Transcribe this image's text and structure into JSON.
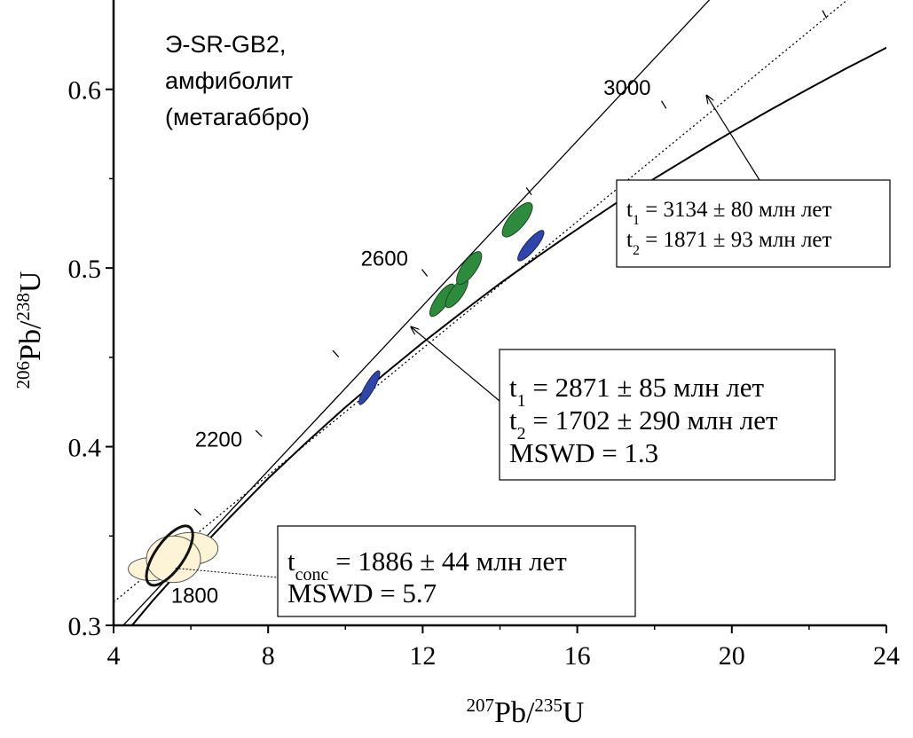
{
  "chart_data": {
    "type": "scatter",
    "title": "",
    "sample_label": [
      "Э-SR-GB2,",
      "амфиболит",
      "(метагаббро)"
    ],
    "xlabel": {
      "sup1": "207",
      "base1": "Pb/",
      "sup2": "235",
      "base2": "U"
    },
    "ylabel": {
      "sup1": "206",
      "base1": "Pb/",
      "sup2": "238",
      "base2": "U"
    },
    "xlim": [
      4,
      24
    ],
    "ylim": [
      0.3,
      0.65
    ],
    "x_ticks": [
      {
        "v": 4,
        "label": "4"
      },
      {
        "v": 8,
        "label": "8"
      },
      {
        "v": 12,
        "label": "12"
      },
      {
        "v": 16,
        "label": "16"
      },
      {
        "v": 20,
        "label": "20"
      },
      {
        "v": 24,
        "label": "24"
      }
    ],
    "y_ticks": [
      {
        "v": 0.3,
        "label": "0.3"
      },
      {
        "v": 0.4,
        "label": "0.4"
      },
      {
        "v": 0.5,
        "label": "0.5"
      },
      {
        "v": 0.6,
        "label": "0.6"
      }
    ],
    "x_minor_ticks": [
      6,
      10,
      14,
      18,
      22
    ],
    "y_minor_ticks": [
      0.35,
      0.45,
      0.55
    ],
    "concordia": {
      "points": [
        [
          4.0,
          0.2876
        ],
        [
          4.5,
          0.3006
        ],
        [
          5.0,
          0.3135
        ],
        [
          5.5,
          0.3255
        ],
        [
          6.0,
          0.3375
        ],
        [
          6.5,
          0.3489
        ],
        [
          7.0,
          0.3602
        ],
        [
          7.5,
          0.3712
        ],
        [
          8.0,
          0.3822
        ],
        [
          8.5,
          0.3924
        ],
        [
          9.0,
          0.4026
        ],
        [
          9.5,
          0.4124
        ],
        [
          10.0,
          0.4221
        ],
        [
          10.5,
          0.4313
        ],
        [
          11.0,
          0.4405
        ],
        [
          11.5,
          0.4494
        ],
        [
          12.0,
          0.4582
        ],
        [
          12.5,
          0.4666
        ],
        [
          13.0,
          0.475
        ],
        [
          13.5,
          0.4832
        ],
        [
          14.0,
          0.4914
        ],
        [
          14.5,
          0.4991
        ],
        [
          15.0,
          0.5068
        ],
        [
          15.5,
          0.5143
        ],
        [
          16.0,
          0.5217
        ],
        [
          16.5,
          0.529
        ],
        [
          17.0,
          0.5362
        ],
        [
          17.5,
          0.5431
        ],
        [
          18.0,
          0.5501
        ],
        [
          18.5,
          0.5567
        ],
        [
          19.0,
          0.5633
        ],
        [
          19.5,
          0.5698
        ],
        [
          20.0,
          0.5762
        ],
        [
          20.5,
          0.5824
        ],
        [
          21.0,
          0.5886
        ],
        [
          21.5,
          0.5945
        ],
        [
          22.0,
          0.6005
        ],
        [
          22.5,
          0.6063
        ],
        [
          23.0,
          0.6121
        ],
        [
          23.5,
          0.6177
        ],
        [
          24.0,
          0.6233
        ]
      ],
      "age_ticks": [
        {
          "x": 5.67,
          "y": 0.3324,
          "label": "1800"
        },
        {
          "x": 6.18,
          "y": 0.3634,
          "label": ""
        },
        {
          "x": 7.76,
          "y": 0.4074,
          "label": "2200"
        },
        {
          "x": 9.75,
          "y": 0.452,
          "label": ""
        },
        {
          "x": 12.05,
          "y": 0.4973,
          "label": "2600"
        },
        {
          "x": 14.75,
          "y": 0.543,
          "label": ""
        },
        {
          "x": 18.24,
          "y": 0.5914,
          "label": "3000"
        },
        {
          "x": 22.4,
          "y": 0.642,
          "label": ""
        }
      ]
    },
    "discordia": [
      {
        "name": "solid",
        "points": [
          [
            4.25,
            0.3
          ],
          [
            20.5,
            0.675
          ]
        ]
      },
      {
        "name": "dotted",
        "points": [
          [
            4.0,
            0.313
          ],
          [
            24.0,
            0.668
          ]
        ]
      }
    ],
    "ellipses": [
      {
        "cx": 4.98,
        "cy": 0.3315,
        "rx": 0.6,
        "ry": 0.0065,
        "angle": 0,
        "fill": "#fdf4d8",
        "stroke": "#555555",
        "sw": 1
      },
      {
        "cx": 6.0,
        "cy": 0.343,
        "rx": 0.7,
        "ry": 0.009,
        "angle": 0,
        "fill": "#fdf4d8",
        "stroke": "#555555",
        "sw": 1
      },
      {
        "cx": 5.55,
        "cy": 0.337,
        "rx": 0.7,
        "ry": 0.013,
        "angle": 0,
        "fill": "#fdf4d8",
        "stroke": "#555555",
        "sw": 1
      },
      {
        "cx": 5.45,
        "cy": 0.339,
        "rx": 0.9,
        "ry": 0.008,
        "angle": -55,
        "fill": "none",
        "stroke": "#111111",
        "sw": 3
      },
      {
        "cx": 10.62,
        "cy": 0.433,
        "rx": 0.5,
        "ry": 0.0025,
        "angle": -60,
        "fill": "#2f45a8",
        "stroke": "#1a2466",
        "sw": 1
      },
      {
        "cx": 14.8,
        "cy": 0.5125,
        "rx": 0.5,
        "ry": 0.003,
        "angle": -50,
        "fill": "#2f45a8",
        "stroke": "#1a2466",
        "sw": 1
      },
      {
        "cx": 12.5,
        "cy": 0.482,
        "rx": 0.5,
        "ry": 0.0035,
        "angle": -55,
        "fill": "#2e8b3e",
        "stroke": "#1a4a22",
        "sw": 1
      },
      {
        "cx": 12.88,
        "cy": 0.486,
        "rx": 0.45,
        "ry": 0.0035,
        "angle": -55,
        "fill": "#2e8b3e",
        "stroke": "#1a4a22",
        "sw": 1
      },
      {
        "cx": 13.2,
        "cy": 0.5,
        "rx": 0.5,
        "ry": 0.004,
        "angle": -55,
        "fill": "#2e8b3e",
        "stroke": "#1a4a22",
        "sw": 1
      },
      {
        "cx": 14.45,
        "cy": 0.527,
        "rx": 0.55,
        "ry": 0.0045,
        "angle": -50,
        "fill": "#2e8b3e",
        "stroke": "#1a4a22",
        "sw": 1
      }
    ],
    "annotations": [
      {
        "id": "box-upper",
        "lines": [
          {
            "pre": "t",
            "sub": "1",
            "post": " = 3134 ± 80 млн лет"
          },
          {
            "pre": "t",
            "sub": "2",
            "post": " = 1871 ± 93 млн лет"
          }
        ],
        "arrow_to": [
          19.35,
          0.5965
        ]
      },
      {
        "id": "box-middle",
        "lines": [
          {
            "pre": "t",
            "sub": "1",
            "post": " = 2871 ± 85 млн лет"
          },
          {
            "pre": "t",
            "sub": "2",
            "post": " = 1702 ± 290 млн лет"
          },
          {
            "pre": "MSWD = 1.3",
            "sub": "",
            "post": ""
          }
        ],
        "arrow_to": [
          11.7,
          0.467
        ]
      },
      {
        "id": "box-lower",
        "lines": [
          {
            "pre": "t",
            "sub": "conc",
            "post": " = 1886 ± 44 млн лет"
          },
          {
            "pre": "MSWD = 5.7",
            "sub": "",
            "post": ""
          }
        ],
        "leader_from": [
          5.6,
          0.332
        ]
      }
    ]
  }
}
